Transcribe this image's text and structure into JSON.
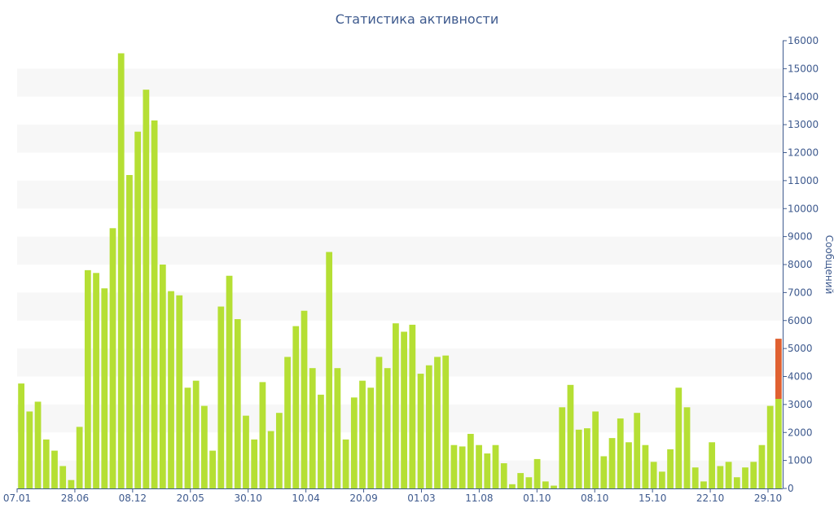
{
  "chart_data": {
    "type": "bar",
    "title": "Статистика активности",
    "xlabel": "",
    "ylabel": "Сообщений",
    "ylim": [
      0,
      16000
    ],
    "y_ticks": [
      "0",
      "1000",
      "2000",
      "3000",
      "4000",
      "5000",
      "6000",
      "7000",
      "8000",
      "9000",
      "10000",
      "11000",
      "12000",
      "13000",
      "14000",
      "15000",
      "16000"
    ],
    "x_tick_labels": [
      "07.01",
      "28.06",
      "08.12",
      "20.05",
      "30.10",
      "10.04",
      "20.09",
      "01.03",
      "11.08",
      "01.10",
      "08.10",
      "15.10",
      "22.10",
      "29.10"
    ],
    "grid": "alternating horizontal bands",
    "colors": {
      "bar": "#b5df34",
      "highlight": "#e06131",
      "axis": "#3e5a8e",
      "band": "#f7f7f7"
    },
    "series": [
      {
        "values": [
          3750,
          2750,
          3100,
          1750,
          1350,
          800,
          300,
          2200,
          7800,
          7700,
          7150,
          9300,
          15550,
          11200,
          12750,
          14250,
          13150,
          8000,
          7050,
          6900,
          3600,
          3850,
          2950,
          1350,
          6500,
          7600,
          6050,
          2600,
          1750,
          3800,
          2050,
          2700,
          4700,
          5800,
          6350,
          4300,
          3350,
          8450,
          4300,
          1750,
          3250,
          3850,
          3600,
          4700,
          4300,
          5900,
          5600,
          5850,
          4100,
          4400,
          4700,
          4750,
          1550,
          1500,
          1950,
          1550,
          1250,
          1550,
          900,
          150,
          550,
          400,
          1050,
          250,
          100,
          2900,
          3700,
          2100,
          2150,
          2750,
          1150,
          1800,
          2500,
          1650,
          2700,
          1550,
          950,
          600,
          1400,
          3600,
          2900,
          750,
          250,
          1650,
          800,
          950,
          400,
          750,
          950,
          1550,
          2950,
          3200
        ],
        "highlight_last": 2150
      }
    ]
  }
}
